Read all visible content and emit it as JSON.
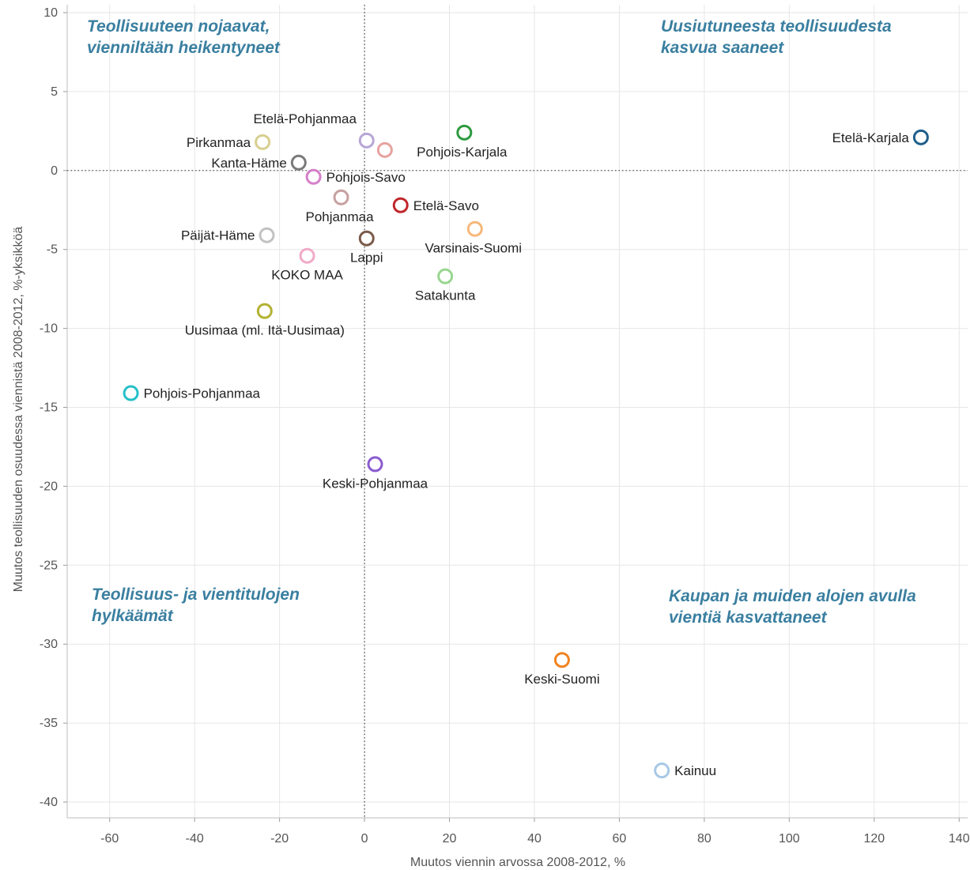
{
  "chart_data": {
    "type": "scatter",
    "xlabel": "Muutos viennin arvossa 2008-2012, %",
    "ylabel": "Muutos teollisuuden osuudessa viennistä 2008-2012, %-yksikköä",
    "xlim": [
      -70,
      142
    ],
    "ylim": [
      -41,
      10.5
    ],
    "xticks": [
      -60,
      -40,
      -20,
      0,
      20,
      40,
      60,
      80,
      100,
      120,
      140
    ],
    "yticks": [
      10,
      5,
      0,
      -5,
      -10,
      -15,
      -20,
      -25,
      -30,
      -35,
      -40
    ],
    "grid": true,
    "reference_lines": {
      "x": 0,
      "y": 0
    },
    "quadrant_labels": [
      {
        "id": "top-left",
        "lines": [
          "Teollisuuteen nojaavat,",
          "vienniltään heikentyneet"
        ]
      },
      {
        "id": "top-right",
        "lines": [
          "Uusiutuneesta teollisuudesta",
          "kasvua saaneet"
        ]
      },
      {
        "id": "bottom-left",
        "lines": [
          "Teollisuus- ja vientitulojen",
          "hylkäämät"
        ]
      },
      {
        "id": "bottom-right",
        "lines": [
          "Kaupan ja muiden alojen avulla",
          "vientiä kasvattaneet"
        ]
      }
    ],
    "points": [
      {
        "label": "Etelä-Karjala",
        "x": 131,
        "y": 2.1,
        "color": "#1f5f8b",
        "label_pos": "left"
      },
      {
        "label": "Etelä-Pohjanmaa",
        "x": 0.5,
        "y": 1.9,
        "color": "#b8a6d6",
        "label_pos": "above"
      },
      {
        "label": "Pohjois-Karjala",
        "x": 23.5,
        "y": 2.4,
        "color": "#2e9a3f",
        "label_pos": "below"
      },
      {
        "label": "",
        "x": 4.8,
        "y": 1.3,
        "color": "#e8a3a0",
        "label_pos": "none"
      },
      {
        "label": "Pirkanmaa",
        "x": -24,
        "y": 1.8,
        "color": "#d8cf8f",
        "label_pos": "left"
      },
      {
        "label": "Kanta-Häme",
        "x": -15.5,
        "y": 0.5,
        "color": "#7a7a7a",
        "label_pos": "left"
      },
      {
        "label": "Pohjois-Savo",
        "x": -12,
        "y": -0.4,
        "color": "#d57fc9",
        "label_pos": "right"
      },
      {
        "label": "Pohjanmaa",
        "x": -5.5,
        "y": -1.7,
        "color": "#c7a0a0",
        "label_pos": "below"
      },
      {
        "label": "Etelä-Savo",
        "x": 8.5,
        "y": -2.2,
        "color": "#c0262a",
        "label_pos": "right"
      },
      {
        "label": "Päijät-Häme",
        "x": -23,
        "y": -4.1,
        "color": "#c2c2c2",
        "label_pos": "left"
      },
      {
        "label": "Varsinais-Suomi",
        "x": 26,
        "y": -3.7,
        "color": "#f5b87a",
        "label_pos": "below"
      },
      {
        "label": "Lappi",
        "x": 0.5,
        "y": -4.3,
        "color": "#7a5a4a",
        "label_pos": "below"
      },
      {
        "label": "KOKO MAA",
        "x": -13.5,
        "y": -5.4,
        "color": "#f0aac8",
        "label_pos": "below"
      },
      {
        "label": "Satakunta",
        "x": 19,
        "y": -6.7,
        "color": "#98d690",
        "label_pos": "below"
      },
      {
        "label": "Uusimaa (ml. Itä-Uusimaa)",
        "x": -23.5,
        "y": -8.9,
        "color": "#b3b233",
        "label_pos": "below"
      },
      {
        "label": "Pohjois-Pohjanmaa",
        "x": -55,
        "y": -14.1,
        "color": "#25c0c9",
        "label_pos": "right"
      },
      {
        "label": "Keski-Pohjanmaa",
        "x": 2.5,
        "y": -18.6,
        "color": "#8a5ccf",
        "label_pos": "below"
      },
      {
        "label": "Keski-Suomi",
        "x": 46.5,
        "y": -31,
        "color": "#f0831f",
        "label_pos": "below"
      },
      {
        "label": "Kainuu",
        "x": 70,
        "y": -38,
        "color": "#a8c8e6",
        "label_pos": "right"
      }
    ]
  }
}
